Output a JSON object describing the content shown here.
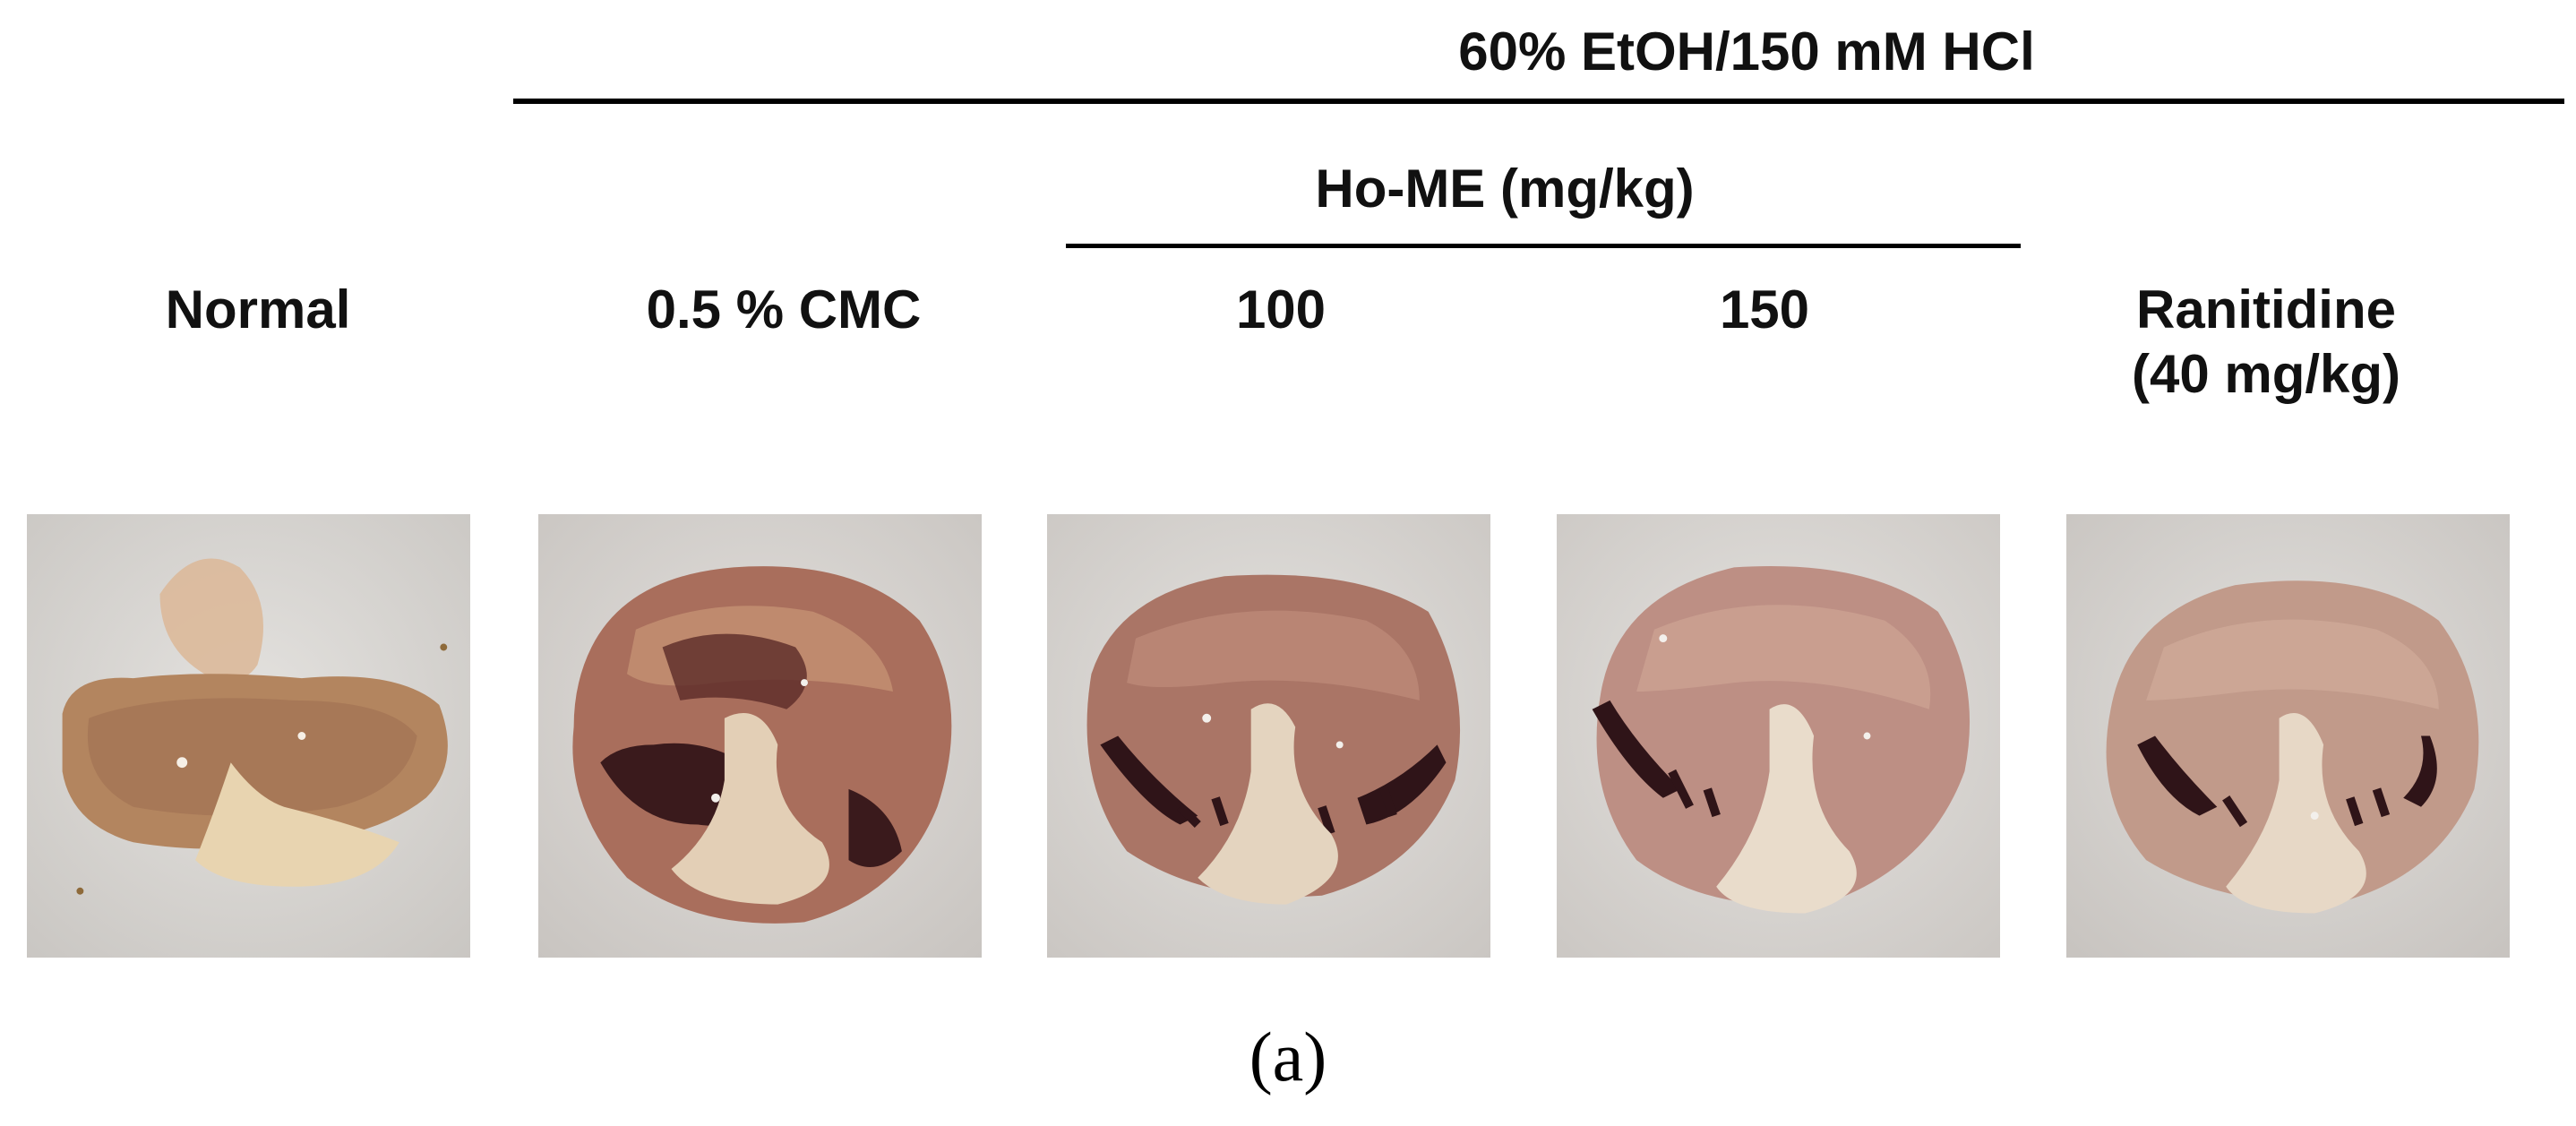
{
  "header": {
    "title": "60% EtOH/150 mM HCl",
    "subgroup": "Ho-ME (mg/kg)"
  },
  "groups": [
    {
      "label": "Normal"
    },
    {
      "label": "0.5 % CMC"
    },
    {
      "label": "100"
    },
    {
      "label": "150"
    },
    {
      "label_line1": "Ranitidine",
      "label_line2": "(40 mg/kg)"
    }
  ],
  "panel_label": "(a)",
  "colors": {
    "background": "#ffffff",
    "text": "#111111",
    "tray": "#d9d7d5",
    "tissue": "#b98a78",
    "mucosa_dark": "#9a5f52",
    "lesion": "#2f1418",
    "fundus": "#e7d6bd"
  },
  "photos": [
    {
      "name": "normal",
      "lesion_severity": "none"
    },
    {
      "name": "cmc",
      "lesion_severity": "severe"
    },
    {
      "name": "home-100",
      "lesion_severity": "moderate"
    },
    {
      "name": "home-150",
      "lesion_severity": "mild"
    },
    {
      "name": "ranitidine",
      "lesion_severity": "mild"
    }
  ]
}
